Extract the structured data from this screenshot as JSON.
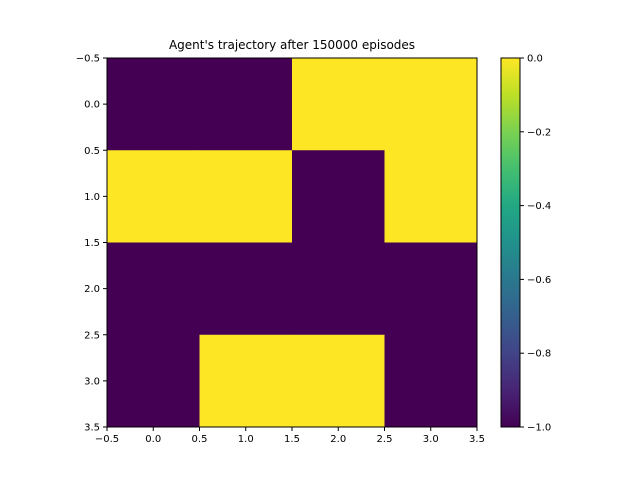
{
  "chart_data": {
    "type": "heatmap",
    "title": "Agent's trajectory after 150000 episodes",
    "xlabel": "",
    "ylabel": "",
    "x_ticks": [
      "−0.5",
      "0.0",
      "0.5",
      "1.0",
      "1.5",
      "2.0",
      "2.5",
      "3.0",
      "3.5"
    ],
    "y_ticks": [
      "−0.5",
      "0.0",
      "0.5",
      "1.0",
      "1.5",
      "2.0",
      "2.5",
      "3.0",
      "3.5"
    ],
    "xlim": [
      -0.5,
      3.5
    ],
    "ylim": [
      3.5,
      -0.5
    ],
    "rows": 4,
    "cols": 4,
    "values": [
      [
        -1,
        -1,
        0,
        0
      ],
      [
        0,
        0,
        -1,
        0
      ],
      [
        -1,
        -1,
        -1,
        -1
      ],
      [
        -1,
        0,
        0,
        -1
      ]
    ],
    "colormap": "viridis",
    "color_min": "#440154",
    "color_max": "#fde725",
    "colorbar": {
      "vmin": -1.0,
      "vmax": 0.0,
      "ticks": [
        0.0,
        -0.2,
        -0.4,
        -0.6,
        -0.8,
        -1.0
      ],
      "tick_labels": [
        "0.0",
        "−0.2",
        "−0.4",
        "−0.6",
        "−0.8",
        "−1.0"
      ]
    },
    "grid": false,
    "legend": "none"
  }
}
